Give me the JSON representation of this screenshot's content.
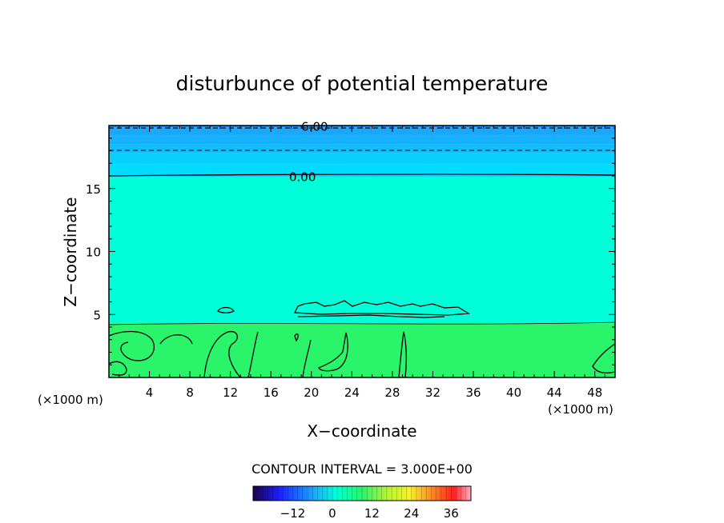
{
  "chart_data": {
    "type": "contour",
    "title": "disturbunce of potential temperature",
    "xlabel": "X−coordinate",
    "ylabel": "Z−coordinate",
    "x_unit": "(×1000 m)",
    "y_unit": "(×1000 m)",
    "xlim": [
      0,
      50
    ],
    "ylim": [
      0,
      20
    ],
    "xticks": [
      4,
      8,
      12,
      16,
      20,
      24,
      28,
      32,
      36,
      40,
      44,
      48
    ],
    "yticks": [
      5,
      10,
      15
    ],
    "contour_labels": [
      {
        "text": "6.00",
        "x": 19,
        "y": 19.9
      },
      {
        "text": "0.00",
        "x": 17.8,
        "y": 15.9
      }
    ],
    "contour_interval_text": "CONTOUR INTERVAL = 3.000E+00",
    "colorbar": {
      "min": -24,
      "max": 42,
      "ticks": [
        -12,
        0,
        12,
        24,
        36
      ]
    },
    "regions": [
      {
        "z_from": 19.85,
        "z_to": 20,
        "value": -9
      },
      {
        "z_from": 19.2,
        "z_to": 19.85,
        "value": -8
      },
      {
        "z_from": 18.5,
        "z_to": 19.2,
        "value": -7
      },
      {
        "z_from": 17.8,
        "z_to": 18.5,
        "value": -5.5
      },
      {
        "z_from": 16.9,
        "z_to": 17.8,
        "value": -3.5
      },
      {
        "z_from": 15.9,
        "z_to": 16.9,
        "value": -2
      },
      {
        "z_from": 4.3,
        "z_to": 15.9,
        "value": 1
      },
      {
        "z_from": 0,
        "z_to": 4.3,
        "value": 7
      }
    ]
  }
}
